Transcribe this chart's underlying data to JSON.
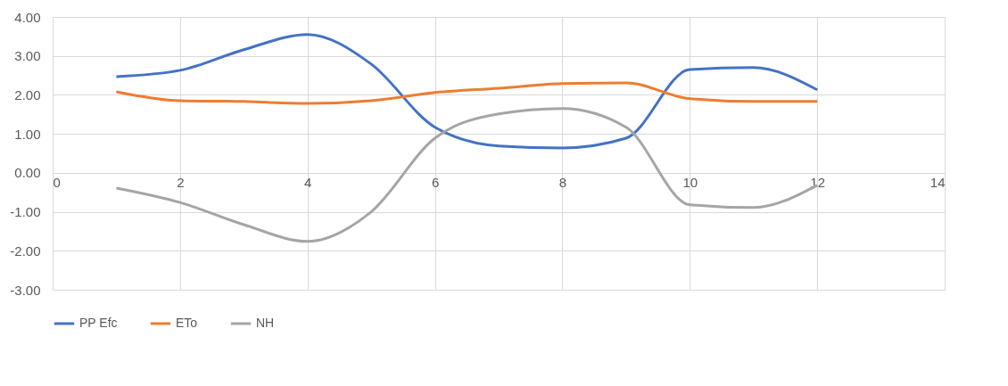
{
  "chart_data": {
    "type": "line",
    "x": [
      1,
      2,
      3,
      4,
      5,
      6,
      7,
      8,
      9,
      10,
      11,
      12
    ],
    "series": [
      {
        "name": "PP Efc",
        "color": "#4472c4",
        "values": [
          2.47,
          2.63,
          3.16,
          3.55,
          2.79,
          1.17,
          0.69,
          0.64,
          0.89,
          2.65,
          2.7,
          2.13
        ]
      },
      {
        "name": "ETo",
        "color": "#ed7d31",
        "values": [
          2.08,
          1.85,
          1.83,
          1.78,
          1.85,
          2.06,
          2.17,
          2.29,
          2.31,
          1.9,
          1.83,
          1.83
        ]
      },
      {
        "name": "NH",
        "color": "#a5a5a5",
        "values": [
          -0.39,
          -0.76,
          -1.33,
          -1.76,
          -1.0,
          0.89,
          1.51,
          1.65,
          1.17,
          -0.82,
          -0.89,
          -0.32
        ]
      }
    ],
    "xlim": [
      0,
      14
    ],
    "xticks": [
      0,
      2,
      4,
      6,
      8,
      10,
      12,
      14
    ],
    "ylim": [
      -3,
      4
    ],
    "yticks": [
      {
        "value": -3,
        "label": "-3.00"
      },
      {
        "value": -2,
        "label": "-2.00"
      },
      {
        "value": -1,
        "label": "-1.00"
      },
      {
        "value": 0,
        "label": "0.00"
      },
      {
        "value": 1,
        "label": "1.00"
      },
      {
        "value": 2,
        "label": "2.00"
      },
      {
        "value": 3,
        "label": "3.00"
      },
      {
        "value": 4,
        "label": "4.00"
      }
    ],
    "grid": true,
    "legend": "bottom",
    "marker": "none",
    "line_style": "solid"
  }
}
